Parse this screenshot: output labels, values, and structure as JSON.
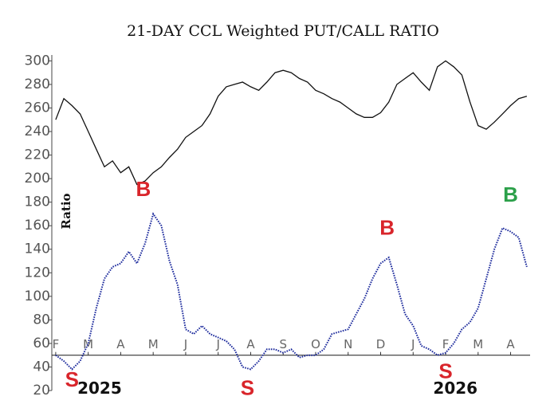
{
  "chart_data": {
    "type": "line",
    "title": "21-DAY CCL Weighted PUT/CALL RATIO",
    "ylabel": "Ratio",
    "x": [
      0,
      0.25,
      0.5,
      0.75,
      1,
      1.25,
      1.5,
      1.75,
      2,
      2.25,
      2.5,
      2.75,
      3,
      3.25,
      3.5,
      3.75,
      4,
      4.25,
      4.5,
      4.75,
      5,
      5.25,
      5.5,
      5.75,
      6,
      6.25,
      6.5,
      6.75,
      7,
      7.25,
      7.5,
      7.75,
      8,
      8.25,
      8.5,
      8.75,
      9,
      9.25,
      9.5,
      9.75,
      10,
      10.25,
      10.5,
      10.75,
      11,
      11.25,
      11.5,
      11.75,
      12,
      12.25,
      12.5,
      12.75,
      13,
      13.25,
      13.5,
      13.75,
      14,
      14.25,
      14.5
    ],
    "series": [
      {
        "color": "#111111",
        "values": [
          250,
          268,
          262,
          255,
          240,
          225,
          210,
          215,
          205,
          210,
          195,
          198,
          205,
          210,
          218,
          225,
          235,
          240,
          245,
          255,
          270,
          278,
          280,
          282,
          278,
          275,
          282,
          290,
          292,
          290,
          285,
          282,
          275,
          272,
          268,
          265,
          260,
          255,
          252,
          252,
          256,
          265,
          280,
          285,
          290,
          282,
          275,
          295,
          300,
          295,
          288,
          265,
          245,
          242,
          248,
          255,
          262,
          268,
          270
        ]
      },
      {
        "color": "#1c2a9c",
        "values": [
          50,
          45,
          38,
          45,
          60,
          90,
          115,
          125,
          128,
          138,
          128,
          145,
          170,
          160,
          130,
          110,
          72,
          68,
          75,
          68,
          65,
          62,
          55,
          40,
          38,
          45,
          55,
          55,
          52,
          55,
          48,
          50,
          50,
          55,
          68,
          70,
          72,
          85,
          98,
          115,
          128,
          133,
          110,
          85,
          75,
          58,
          55,
          50,
          52,
          60,
          72,
          78,
          90,
          115,
          140,
          158,
          155,
          150,
          125
        ]
      }
    ],
    "xlim": [
      -0.12,
      14.6
    ],
    "ylim": [
      20,
      305
    ],
    "yticks": [
      20,
      40,
      60,
      80,
      100,
      120,
      140,
      160,
      180,
      200,
      220,
      240,
      260,
      280,
      300
    ],
    "x_axis_at": 50,
    "xticks": [
      {
        "value": 0,
        "label": "F"
      },
      {
        "value": 1,
        "label": "M"
      },
      {
        "value": 2,
        "label": "A"
      },
      {
        "value": 3,
        "label": "M"
      },
      {
        "value": 4,
        "label": "J"
      },
      {
        "value": 5,
        "label": "J"
      },
      {
        "value": 6,
        "label": "A"
      },
      {
        "value": 7,
        "label": "S"
      },
      {
        "value": 8,
        "label": "O"
      },
      {
        "value": 9,
        "label": "N"
      },
      {
        "value": 10,
        "label": "D"
      },
      {
        "value": 11,
        "label": "J"
      },
      {
        "value": 12,
        "label": "F"
      },
      {
        "value": 13,
        "label": "M"
      },
      {
        "value": 14,
        "label": "A"
      }
    ],
    "years": [
      {
        "text": "2025",
        "x": 1.35,
        "y": 21
      },
      {
        "text": "2026",
        "x": 12.3,
        "y": 21
      }
    ],
    "annotations": [
      {
        "text": "B",
        "color": "#d9252b",
        "x": 2.7,
        "y": 190
      },
      {
        "text": "B",
        "color": "#d9252b",
        "x": 10.2,
        "y": 157
      },
      {
        "text": "B",
        "color": "#2ca04a",
        "x": 14,
        "y": 185
      },
      {
        "text": "S",
        "color": "#d9252b",
        "x": 0.5,
        "y": 28
      },
      {
        "text": "S",
        "color": "#d9252b",
        "x": 5.9,
        "y": 21
      },
      {
        "text": "S",
        "color": "#d9252b",
        "x": 12,
        "y": 35
      }
    ]
  }
}
